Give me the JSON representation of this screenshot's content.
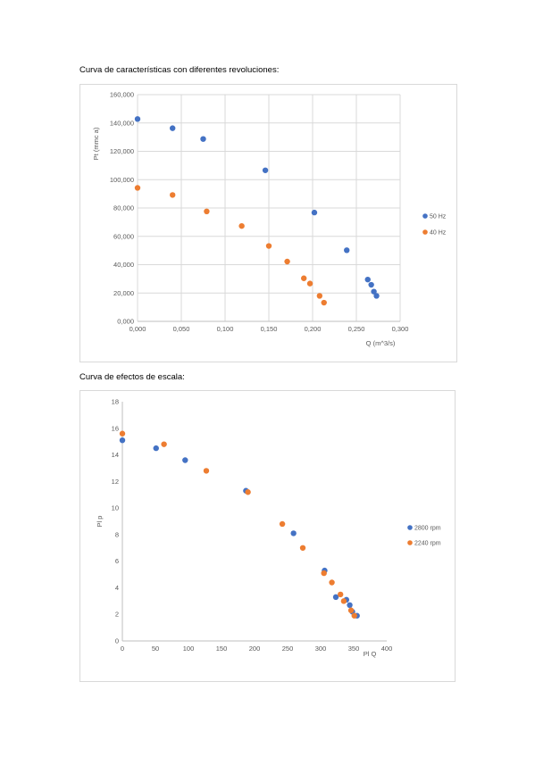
{
  "page": {
    "caption1": "Curva de características con diferentes revoluciones:",
    "caption2": "Curva de efectos de escala:"
  },
  "chart_data": [
    {
      "type": "scatter",
      "title": "",
      "xlabel": "Q (m^3/s)",
      "ylabel": "Pt (mmc a)",
      "xlim": [
        0,
        0.3
      ],
      "ylim": [
        0,
        160000
      ],
      "x_ticks": [
        "0,000",
        "0,050",
        "0,100",
        "0,150",
        "0,200",
        "0,250",
        "0,300"
      ],
      "y_ticks": [
        "0,000",
        "20,000",
        "40,000",
        "60,000",
        "80,000",
        "100,000",
        "120,000",
        "140,000",
        "160,000"
      ],
      "grid": true,
      "legend": "right",
      "series": [
        {
          "name": "50 Hz",
          "color": "#4472c4",
          "points": [
            [
              0.0,
              142800
            ],
            [
              0.04,
              136300
            ],
            [
              0.075,
              128700
            ],
            [
              0.146,
              106600
            ],
            [
              0.202,
              76800
            ],
            [
              0.239,
              50200
            ],
            [
              0.263,
              29500
            ],
            [
              0.267,
              25800
            ],
            [
              0.27,
              21000
            ],
            [
              0.273,
              18000
            ]
          ]
        },
        {
          "name": "40 Hz",
          "color": "#ed7d31",
          "points": [
            [
              0.0,
              94200
            ],
            [
              0.04,
              89200
            ],
            [
              0.079,
              77600
            ],
            [
              0.119,
              67300
            ],
            [
              0.15,
              53200
            ],
            [
              0.171,
              42200
            ],
            [
              0.19,
              30400
            ],
            [
              0.197,
              26700
            ],
            [
              0.208,
              18000
            ],
            [
              0.213,
              13200
            ]
          ]
        }
      ]
    },
    {
      "type": "scatter",
      "title": "",
      "xlabel": "Pl Q",
      "ylabel": "Pl p",
      "xlim": [
        0,
        400
      ],
      "ylim": [
        0,
        18
      ],
      "x_ticks": [
        "0",
        "50",
        "100",
        "150",
        "200",
        "250",
        "300",
        "350",
        "400"
      ],
      "y_ticks": [
        "0",
        "2",
        "4",
        "6",
        "8",
        "10",
        "12",
        "14",
        "16",
        "18"
      ],
      "grid": false,
      "legend": "right",
      "series": [
        {
          "name": "2800 rpm",
          "color": "#4472c4",
          "points": [
            [
              0,
              15.1
            ],
            [
              51,
              14.5
            ],
            [
              95,
              13.6
            ],
            [
              187,
              11.3
            ],
            [
              259,
              8.1
            ],
            [
              306,
              5.3
            ],
            [
              323,
              3.3
            ],
            [
              339,
              3.1
            ],
            [
              344,
              2.7
            ],
            [
              348,
              2.2
            ],
            [
              355,
              1.9
            ]
          ]
        },
        {
          "name": "2240 rpm",
          "color": "#ed7d31",
          "points": [
            [
              0,
              15.6
            ],
            [
              63,
              14.8
            ],
            [
              127,
              12.8
            ],
            [
              190,
              11.2
            ],
            [
              242,
              8.8
            ],
            [
              273,
              7.0
            ],
            [
              305,
              5.1
            ],
            [
              317,
              4.4
            ],
            [
              330,
              3.5
            ],
            [
              335,
              3.0
            ],
            [
              346,
              2.3
            ],
            [
              351,
              1.9
            ]
          ]
        }
      ]
    }
  ]
}
